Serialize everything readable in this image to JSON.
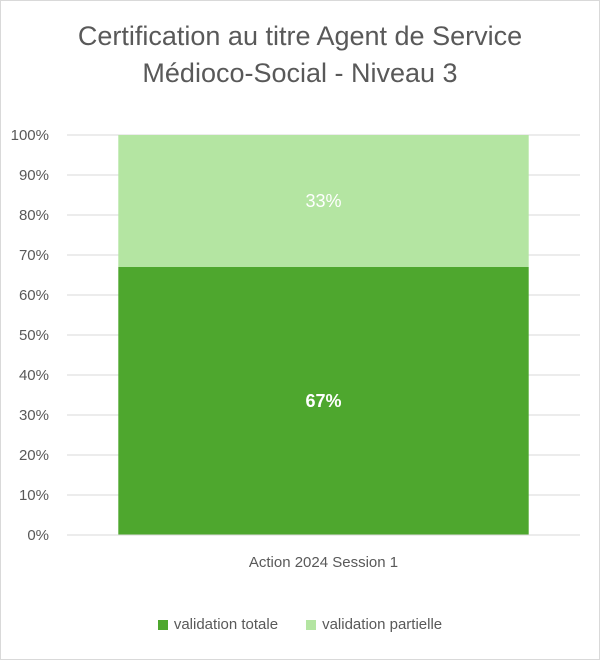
{
  "chart_data": {
    "type": "bar",
    "stacked": true,
    "title_lines": [
      "Certification au titre Agent de Service",
      "Médioco-Social - Niveau 3"
    ],
    "categories": [
      "Action 2024 Session 1"
    ],
    "series": [
      {
        "name": "validation totale",
        "values": [
          0.67
        ],
        "label": "67%",
        "color": "#4ea72e",
        "label_color": "#ffffff",
        "label_bold": true
      },
      {
        "name": "validation partielle",
        "values": [
          0.33
        ],
        "label": "33%",
        "color": "#b4e5a2",
        "label_color": "#ffffff",
        "label_bold": false
      }
    ],
    "ylim": [
      0,
      1
    ],
    "yticks": [
      "0%",
      "10%",
      "20%",
      "30%",
      "40%",
      "50%",
      "60%",
      "70%",
      "80%",
      "90%",
      "100%"
    ],
    "grid": true,
    "legend_position": "bottom"
  }
}
